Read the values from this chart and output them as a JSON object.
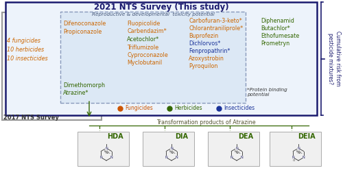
{
  "title": "2021 NTS Survey (This study)",
  "title_color": "#1a1a6e",
  "title_fontsize": 8.5,
  "outer_box_color": "#1a1a6e",
  "inner_box_fill": "#dce8f5",
  "survey2017_label": "2017 NTS Survey",
  "survey2017_color": "#333333",
  "left_label_lines": [
    "4 fungicides",
    "10 herbicides",
    "10 insecticides"
  ],
  "left_label_color": "#cc6600",
  "repro_label": "Reproductive & developmental  toxicity potential",
  "col1_items": [
    "Difenoconazole",
    "Propiconazole"
  ],
  "col1_color": "#cc6600",
  "col2_items": [
    "Fluopicolide",
    "Carbendazim*",
    "Acetochlor*",
    "Triflumizole",
    "Cyproconazole",
    "Myclobutanil"
  ],
  "col2_colors": [
    "#cc6600",
    "#cc6600",
    "#336600",
    "#cc6600",
    "#cc6600",
    "#cc6600"
  ],
  "col3_items": [
    "Carbofuran-3-keto*",
    "Chlorantraniliprole*",
    "Buprofezin",
    "Dichlorvos*",
    "Fenpropathrin*",
    "Azoxystrobin",
    "Pyroquilon"
  ],
  "col3_colors": [
    "#cc6600",
    "#cc6600",
    "#cc6600",
    "#1a3399",
    "#1a3399",
    "#cc6600",
    "#cc6600"
  ],
  "col4_items": [
    "Diphenamid",
    "Butachlor*",
    "Ethofumesate",
    "Prometryn"
  ],
  "col4_colors": [
    "#336600",
    "#336600",
    "#336600",
    "#336600"
  ],
  "bottom_items": [
    "Dimethomorph",
    "Atrazine*"
  ],
  "bottom_colors": [
    "#336600",
    "#336600"
  ],
  "protein_note": "*Protein binding\npotential",
  "legend_items": [
    "Fungicides",
    "Herbicides",
    "Insecticides"
  ],
  "legend_colors": [
    "#cc5500",
    "#336600",
    "#1a3399"
  ],
  "transformation_label": "Transformation products of Atrazine",
  "metabolite_labels": [
    "HDA",
    "DIA",
    "DEA",
    "DEIA"
  ],
  "metabolite_color": "#336600",
  "cumulative_label": "Cumulative risk from\npesticide mixtures?",
  "cumulative_color": "#1a1a6e",
  "background": "#ffffff"
}
